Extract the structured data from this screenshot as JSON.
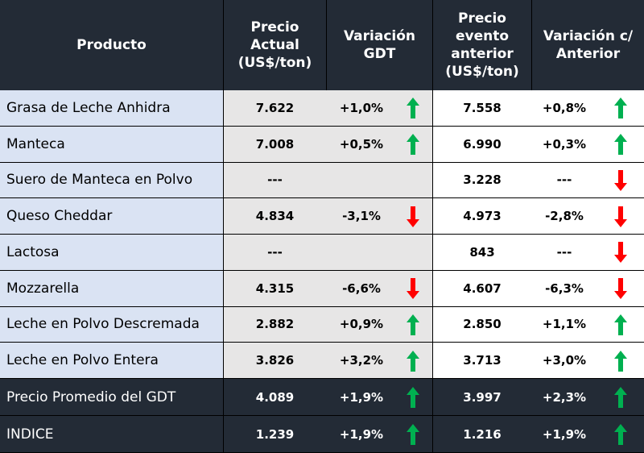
{
  "table": {
    "header": [
      [
        "Producto"
      ],
      [
        "Precio",
        "Actual",
        "(US$/ton)"
      ],
      [
        "Variación",
        "GDT"
      ],
      [
        "Precio",
        "evento",
        "anterior",
        "(US$/ton)"
      ],
      [
        "Variación c/",
        "Anterior"
      ]
    ],
    "rows": [
      [
        "Grasa de Leche Anhidra",
        "7.622",
        "+1,0%",
        "7.558",
        "+0,8%"
      ],
      [
        "Manteca",
        "7.008",
        "+0,5%",
        "6.990",
        "+0,3%"
      ],
      [
        "Suero de Manteca en Polvo",
        "---",
        "",
        "3.228",
        "---"
      ],
      [
        "Queso Cheddar",
        "4.834",
        "-3,1%",
        "4.973",
        "-2,8%"
      ],
      [
        "Lactosa",
        "---",
        "",
        "843",
        "---"
      ],
      [
        "Mozzarella",
        "4.315",
        "-6,6%",
        "4.607",
        "-6,3%"
      ],
      [
        "Leche en Polvo Descremada",
        "2.882",
        "+0,9%",
        "2.850",
        "+1,1%"
      ],
      [
        "Leche en Polvo Entera",
        "3.826",
        "+3,2%",
        "3.713",
        "+3,0%"
      ]
    ],
    "footer": [
      [
        "Precio Promedio del GDT",
        "4.089",
        "+1,9%",
        "3.997",
        "+2,3%"
      ],
      [
        "INDICE",
        "1.239",
        "+1,9%",
        "1.216",
        "+1,9%"
      ]
    ]
  }
}
